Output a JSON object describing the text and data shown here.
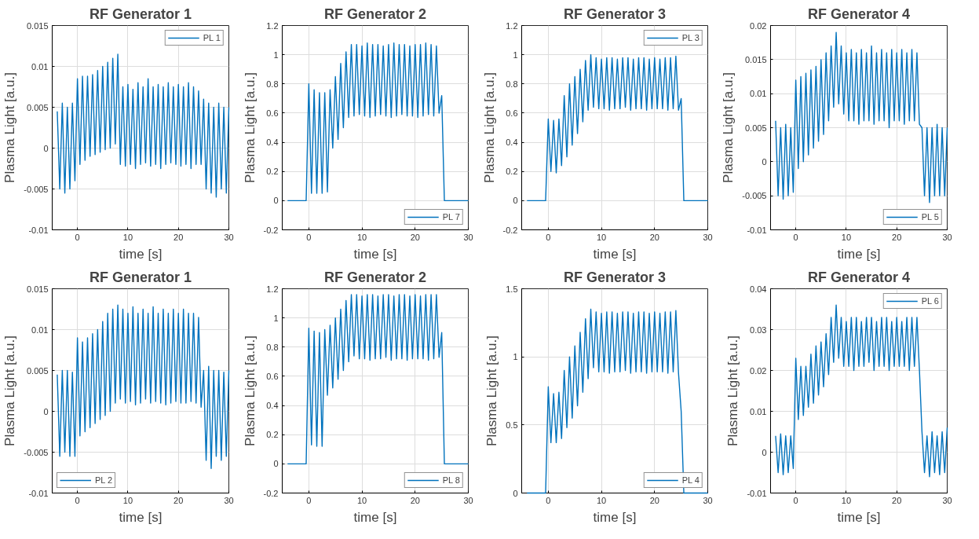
{
  "chart_data": [
    {
      "type": "line",
      "title": "RF Generator 1",
      "xlabel": "time [s]",
      "ylabel": "Plasma Light [a.u.]",
      "xlim": [
        -5,
        30
      ],
      "xticks": [
        0,
        10,
        20,
        30
      ],
      "ylim": [
        -0.01,
        0.015
      ],
      "yticks": [
        -0.01,
        -0.005,
        0,
        0.005,
        0.01,
        0.015
      ],
      "grid": true,
      "legend": "top right",
      "x": [
        -4,
        -3.5,
        -3,
        -2.5,
        -2,
        -1.5,
        -1,
        -0.5,
        0,
        0.5,
        1,
        1.5,
        2,
        2.5,
        3,
        3.5,
        4,
        4.5,
        5,
        5.5,
        6,
        6.5,
        7,
        7.5,
        8,
        8.5,
        9,
        9.5,
        10,
        10.5,
        11,
        11.5,
        12,
        12.5,
        13,
        13.5,
        14,
        14.5,
        15,
        15.5,
        16,
        16.5,
        17,
        17.5,
        18,
        18.5,
        19,
        19.5,
        20,
        20.5,
        21,
        21.5,
        22,
        22.5,
        23,
        23.5,
        24,
        24.5,
        25,
        25.5,
        26,
        26.5,
        27,
        27.5,
        28,
        28.5,
        29,
        29.5,
        30
      ],
      "series": [
        {
          "name": "PL 1",
          "color": "#0072bd",
          "values": [
            0.0045,
            -0.005,
            0.0055,
            -0.0055,
            0.005,
            -0.005,
            0.0055,
            -0.004,
            0.0085,
            -0.002,
            0.0088,
            -0.0015,
            0.0088,
            -0.001,
            0.009,
            -0.0008,
            0.0095,
            -0.0005,
            0.01,
            -0.0002,
            0.0105,
            0,
            0.011,
            0.0005,
            0.0115,
            -0.002,
            0.0075,
            -0.0022,
            0.0078,
            -0.002,
            0.0072,
            -0.0025,
            0.008,
            -0.002,
            0.0075,
            -0.0018,
            0.0085,
            -0.0022,
            0.0075,
            -0.002,
            0.0078,
            -0.0025,
            0.0075,
            -0.002,
            0.008,
            -0.0018,
            0.0075,
            -0.002,
            0.0078,
            -0.0022,
            0.0075,
            -0.002,
            0.008,
            -0.0025,
            0.0075,
            -0.002,
            0.007,
            -0.002,
            0.006,
            -0.005,
            0.0055,
            -0.0055,
            0.005,
            -0.006,
            0.0055,
            -0.005,
            0.005,
            -0.0055,
            0.005
          ]
        }
      ]
    },
    {
      "type": "line",
      "title": "RF Generator 2",
      "xlabel": "time [s]",
      "ylabel": "Plasma Light [a.u.]",
      "xlim": [
        -5,
        30
      ],
      "xticks": [
        0,
        10,
        20,
        30
      ],
      "ylim": [
        -0.2,
        1.2
      ],
      "yticks": [
        -0.2,
        0,
        0.2,
        0.4,
        0.6,
        0.8,
        1,
        1.2
      ],
      "grid": true,
      "legend": "bottom right",
      "x": [
        -4,
        -3.5,
        -3,
        -2.5,
        -2,
        -1.5,
        -1,
        -0.5,
        0,
        0.5,
        1,
        1.5,
        2,
        2.5,
        3,
        3.5,
        4,
        4.5,
        5,
        5.5,
        6,
        6.5,
        7,
        7.5,
        8,
        8.5,
        9,
        9.5,
        10,
        10.5,
        11,
        11.5,
        12,
        12.5,
        13,
        13.5,
        14,
        14.5,
        15,
        15.5,
        16,
        16.5,
        17,
        17.5,
        18,
        18.5,
        19,
        19.5,
        20,
        20.5,
        21,
        21.5,
        22,
        22.5,
        23,
        23.5,
        24,
        24.5,
        25,
        25.5,
        26,
        26.5,
        27,
        27.5,
        28,
        28.5,
        29,
        29.5,
        30
      ],
      "series": [
        {
          "name": "PL 7",
          "color": "#0072bd",
          "values": [
            0,
            0,
            0,
            0,
            0,
            0,
            0,
            0,
            0.8,
            0.05,
            0.76,
            0.05,
            0.74,
            0.05,
            0.74,
            0.06,
            0.76,
            0.36,
            0.85,
            0.42,
            0.94,
            0.5,
            1.02,
            0.57,
            1.07,
            0.58,
            1.07,
            0.59,
            1.06,
            0.58,
            1.08,
            0.57,
            1.07,
            0.58,
            1.07,
            0.59,
            1.06,
            0.58,
            1.07,
            0.57,
            1.08,
            0.58,
            1.07,
            0.59,
            1.07,
            0.58,
            1.06,
            0.58,
            1.07,
            0.57,
            1.07,
            0.58,
            1.08,
            0.59,
            1.07,
            0.58,
            1.06,
            0.6,
            0.72,
            0,
            0,
            0,
            0,
            0,
            0,
            0,
            0,
            0,
            0
          ]
        }
      ]
    },
    {
      "type": "line",
      "title": "RF Generator 3",
      "xlabel": "time [s]",
      "ylabel": "Plasma Light [a.u.]",
      "xlim": [
        -5,
        30
      ],
      "xticks": [
        0,
        10,
        20,
        30
      ],
      "ylim": [
        -0.2,
        1.2
      ],
      "yticks": [
        -0.2,
        0,
        0.2,
        0.4,
        0.6,
        0.8,
        1,
        1.2
      ],
      "grid": true,
      "legend": "top right",
      "x": [
        -4,
        -3.5,
        -3,
        -2.5,
        -2,
        -1.5,
        -1,
        -0.5,
        0,
        0.5,
        1,
        1.5,
        2,
        2.5,
        3,
        3.5,
        4,
        4.5,
        5,
        5.5,
        6,
        6.5,
        7,
        7.5,
        8,
        8.5,
        9,
        9.5,
        10,
        10.5,
        11,
        11.5,
        12,
        12.5,
        13,
        13.5,
        14,
        14.5,
        15,
        15.5,
        16,
        16.5,
        17,
        17.5,
        18,
        18.5,
        19,
        19.5,
        20,
        20.5,
        21,
        21.5,
        22,
        22.5,
        23,
        23.5,
        24,
        24.5,
        25,
        25.5,
        26,
        26.5,
        27,
        27.5,
        28,
        28.5,
        29,
        29.5,
        30
      ],
      "series": [
        {
          "name": "PL 3",
          "color": "#0072bd",
          "values": [
            0,
            0,
            0,
            0,
            0,
            0,
            0,
            0,
            0.56,
            0.2,
            0.55,
            0.19,
            0.56,
            0.24,
            0.72,
            0.3,
            0.8,
            0.38,
            0.85,
            0.46,
            0.9,
            0.54,
            0.96,
            0.62,
            1.0,
            0.64,
            0.98,
            0.63,
            0.97,
            0.63,
            0.98,
            0.62,
            0.98,
            0.63,
            0.97,
            0.63,
            0.98,
            0.64,
            0.98,
            0.62,
            0.97,
            0.63,
            0.98,
            0.63,
            0.98,
            0.62,
            0.97,
            0.63,
            0.98,
            0.63,
            0.97,
            0.63,
            0.98,
            0.62,
            0.98,
            0.63,
            0.99,
            0.62,
            0.7,
            0,
            0,
            0,
            0,
            0,
            0,
            0,
            0,
            0,
            0
          ]
        }
      ]
    },
    {
      "type": "line",
      "title": "RF Generator 4",
      "xlabel": "time [s]",
      "ylabel": "Plasma Light [a.u.]",
      "xlim": [
        -5,
        30
      ],
      "xticks": [
        0,
        10,
        20,
        30
      ],
      "ylim": [
        -0.01,
        0.02
      ],
      "yticks": [
        -0.01,
        -0.005,
        0,
        0.005,
        0.01,
        0.015,
        0.02
      ],
      "grid": true,
      "legend": "bottom right",
      "x": [
        -4,
        -3.5,
        -3,
        -2.5,
        -2,
        -1.5,
        -1,
        -0.5,
        0,
        0.5,
        1,
        1.5,
        2,
        2.5,
        3,
        3.5,
        4,
        4.5,
        5,
        5.5,
        6,
        6.5,
        7,
        7.5,
        8,
        8.5,
        9,
        9.5,
        10,
        10.5,
        11,
        11.5,
        12,
        12.5,
        13,
        13.5,
        14,
        14.5,
        15,
        15.5,
        16,
        16.5,
        17,
        17.5,
        18,
        18.5,
        19,
        19.5,
        20,
        20.5,
        21,
        21.5,
        22,
        22.5,
        23,
        23.5,
        24,
        24.5,
        25,
        25.5,
        26,
        26.5,
        27,
        27.5,
        28,
        28.5,
        29,
        29.5,
        30
      ],
      "series": [
        {
          "name": "PL 5",
          "color": "#0072bd",
          "values": [
            0.006,
            -0.005,
            0.005,
            -0.0055,
            0.0055,
            -0.005,
            0.005,
            -0.0045,
            0.012,
            -0.001,
            0.0125,
            0,
            0.013,
            0.001,
            0.0135,
            0.002,
            0.014,
            0.003,
            0.015,
            0.004,
            0.016,
            0.006,
            0.017,
            0.008,
            0.019,
            0.0085,
            0.017,
            0.007,
            0.016,
            0.006,
            0.0165,
            0.006,
            0.016,
            0.0055,
            0.0165,
            0.006,
            0.016,
            0.006,
            0.017,
            0.0055,
            0.016,
            0.006,
            0.0165,
            0.006,
            0.016,
            0.005,
            0.0165,
            0.006,
            0.016,
            0.006,
            0.0165,
            0.0055,
            0.016,
            0.006,
            0.0165,
            0.006,
            0.016,
            0.0055,
            0.005,
            -0.005,
            0.005,
            -0.006,
            0.005,
            -0.005,
            0.0055,
            -0.005,
            0.005,
            -0.005,
            0.005
          ]
        }
      ]
    },
    {
      "type": "line",
      "title": "RF Generator 1",
      "xlabel": "time [s]",
      "ylabel": "Plasma Light [a.u.]",
      "xlim": [
        -5,
        30
      ],
      "xticks": [
        0,
        10,
        20,
        30
      ],
      "ylim": [
        -0.01,
        0.015
      ],
      "yticks": [
        -0.01,
        -0.005,
        0,
        0.005,
        0.01,
        0.015
      ],
      "grid": true,
      "legend": "bottom left",
      "x": [
        -4,
        -3.5,
        -3,
        -2.5,
        -2,
        -1.5,
        -1,
        -0.5,
        0,
        0.5,
        1,
        1.5,
        2,
        2.5,
        3,
        3.5,
        4,
        4.5,
        5,
        5.5,
        6,
        6.5,
        7,
        7.5,
        8,
        8.5,
        9,
        9.5,
        10,
        10.5,
        11,
        11.5,
        12,
        12.5,
        13,
        13.5,
        14,
        14.5,
        15,
        15.5,
        16,
        16.5,
        17,
        17.5,
        18,
        18.5,
        19,
        19.5,
        20,
        20.5,
        21,
        21.5,
        22,
        22.5,
        23,
        23.5,
        24,
        24.5,
        25,
        25.5,
        26,
        26.5,
        27,
        27.5,
        28,
        28.5,
        29,
        29.5,
        30
      ],
      "series": [
        {
          "name": "PL 2",
          "color": "#0072bd",
          "values": [
            0.0045,
            -0.0055,
            0.005,
            -0.005,
            0.005,
            -0.0055,
            0.0048,
            -0.0055,
            0.009,
            -0.003,
            0.0085,
            -0.0025,
            0.009,
            -0.002,
            0.0095,
            -0.0015,
            0.01,
            -0.001,
            0.011,
            -0.0005,
            0.012,
            0,
            0.0125,
            0.001,
            0.013,
            0.0015,
            0.0125,
            0.001,
            0.012,
            0.0012,
            0.0128,
            0.0008,
            0.012,
            0.001,
            0.0125,
            0.0015,
            0.012,
            0.001,
            0.0128,
            0.0012,
            0.012,
            0.001,
            0.0125,
            0.0008,
            0.012,
            0.001,
            0.0125,
            0.0012,
            0.012,
            0.001,
            0.0125,
            0.001,
            0.012,
            0.0012,
            0.012,
            0.001,
            0.0115,
            0.0005,
            0.005,
            -0.006,
            0.0055,
            -0.007,
            0.005,
            -0.0055,
            0.005,
            -0.006,
            0.0048,
            -0.0055,
            0.005
          ]
        }
      ]
    },
    {
      "type": "line",
      "title": "RF Generator 2",
      "xlabel": "time [s]",
      "ylabel": "Plasma Light [a.u.]",
      "xlim": [
        -5,
        30
      ],
      "xticks": [
        0,
        10,
        20,
        30
      ],
      "ylim": [
        -0.2,
        1.2
      ],
      "yticks": [
        -0.2,
        0,
        0.2,
        0.4,
        0.6,
        0.8,
        1,
        1.2
      ],
      "grid": true,
      "legend": "bottom right",
      "x": [
        -4,
        -3.5,
        -3,
        -2.5,
        -2,
        -1.5,
        -1,
        -0.5,
        0,
        0.5,
        1,
        1.5,
        2,
        2.5,
        3,
        3.5,
        4,
        4.5,
        5,
        5.5,
        6,
        6.5,
        7,
        7.5,
        8,
        8.5,
        9,
        9.5,
        10,
        10.5,
        11,
        11.5,
        12,
        12.5,
        13,
        13.5,
        14,
        14.5,
        15,
        15.5,
        16,
        16.5,
        17,
        17.5,
        18,
        18.5,
        19,
        19.5,
        20,
        20.5,
        21,
        21.5,
        22,
        22.5,
        23,
        23.5,
        24,
        24.5,
        25,
        25.5,
        26,
        26.5,
        27,
        27.5,
        28,
        28.5,
        29,
        29.5,
        30
      ],
      "series": [
        {
          "name": "PL 8",
          "color": "#0072bd",
          "values": [
            0,
            0,
            0,
            0,
            0,
            0,
            0,
            0,
            0.93,
            0.13,
            0.91,
            0.12,
            0.9,
            0.12,
            0.92,
            0.47,
            0.95,
            0.52,
            1.0,
            0.58,
            1.06,
            0.64,
            1.12,
            0.7,
            1.16,
            0.74,
            1.16,
            0.72,
            1.15,
            0.72,
            1.16,
            0.71,
            1.16,
            0.72,
            1.15,
            0.72,
            1.16,
            0.73,
            1.16,
            0.71,
            1.15,
            0.72,
            1.16,
            0.72,
            1.16,
            0.71,
            1.15,
            0.72,
            1.16,
            0.72,
            1.15,
            0.72,
            1.16,
            0.71,
            1.16,
            0.72,
            1.16,
            0.73,
            0.9,
            0,
            0,
            0,
            0,
            0,
            0,
            0,
            0,
            0,
            0
          ]
        }
      ]
    },
    {
      "type": "line",
      "title": "RF Generator 3",
      "xlabel": "time [s]",
      "ylabel": "Plasma Light [a.u.]",
      "xlim": [
        -5,
        30
      ],
      "xticks": [
        0,
        10,
        20,
        30
      ],
      "ylim": [
        0,
        1.5
      ],
      "yticks": [
        0,
        0.5,
        1,
        1.5
      ],
      "grid": true,
      "legend": "bottom right",
      "x": [
        -4,
        -3.5,
        -3,
        -2.5,
        -2,
        -1.5,
        -1,
        -0.5,
        0,
        0.5,
        1,
        1.5,
        2,
        2.5,
        3,
        3.5,
        4,
        4.5,
        5,
        5.5,
        6,
        6.5,
        7,
        7.5,
        8,
        8.5,
        9,
        9.5,
        10,
        10.5,
        11,
        11.5,
        12,
        12.5,
        13,
        13.5,
        14,
        14.5,
        15,
        15.5,
        16,
        16.5,
        17,
        17.5,
        18,
        18.5,
        19,
        19.5,
        20,
        20.5,
        21,
        21.5,
        22,
        22.5,
        23,
        23.5,
        24,
        24.5,
        25,
        25.5,
        26,
        26.5,
        27,
        27.5,
        28,
        28.5,
        29,
        29.5,
        30
      ],
      "series": [
        {
          "name": "PL 4",
          "color": "#0072bd",
          "values": [
            0,
            0,
            0,
            0,
            0,
            0,
            0,
            0,
            0.78,
            0.37,
            0.73,
            0.37,
            0.74,
            0.4,
            0.9,
            0.48,
            1.0,
            0.55,
            1.08,
            0.64,
            1.18,
            0.74,
            1.28,
            0.84,
            1.35,
            0.92,
            1.33,
            0.89,
            1.32,
            0.89,
            1.33,
            0.88,
            1.33,
            0.89,
            1.32,
            0.89,
            1.33,
            0.9,
            1.33,
            0.88,
            1.32,
            0.89,
            1.33,
            0.89,
            1.33,
            0.88,
            1.32,
            0.89,
            1.33,
            0.89,
            1.32,
            0.89,
            1.33,
            0.88,
            1.33,
            0.89,
            1.34,
            0.88,
            0.6,
            0,
            0,
            0,
            0,
            0,
            0,
            0,
            0,
            0,
            0
          ]
        }
      ]
    },
    {
      "type": "line",
      "title": "RF Generator 4",
      "xlabel": "time [s]",
      "ylabel": "Plasma Light [a.u.]",
      "xlim": [
        -5,
        30
      ],
      "xticks": [
        0,
        10,
        20,
        30
      ],
      "ylim": [
        -0.01,
        0.04
      ],
      "yticks": [
        -0.01,
        0,
        0.01,
        0.02,
        0.03,
        0.04
      ],
      "grid": true,
      "legend": "top right",
      "x": [
        -4,
        -3.5,
        -3,
        -2.5,
        -2,
        -1.5,
        -1,
        -0.5,
        0,
        0.5,
        1,
        1.5,
        2,
        2.5,
        3,
        3.5,
        4,
        4.5,
        5,
        5.5,
        6,
        6.5,
        7,
        7.5,
        8,
        8.5,
        9,
        9.5,
        10,
        10.5,
        11,
        11.5,
        12,
        12.5,
        13,
        13.5,
        14,
        14.5,
        15,
        15.5,
        16,
        16.5,
        17,
        17.5,
        18,
        18.5,
        19,
        19.5,
        20,
        20.5,
        21,
        21.5,
        22,
        22.5,
        23,
        23.5,
        24,
        24.5,
        25,
        25.5,
        26,
        26.5,
        27,
        27.5,
        28,
        28.5,
        29,
        29.5,
        30
      ],
      "series": [
        {
          "name": "PL 6",
          "color": "#0072bd",
          "values": [
            0.004,
            -0.005,
            0.0045,
            -0.0055,
            0.004,
            -0.005,
            0.004,
            -0.004,
            0.023,
            0.008,
            0.021,
            0.009,
            0.021,
            0.011,
            0.024,
            0.012,
            0.026,
            0.014,
            0.027,
            0.016,
            0.029,
            0.019,
            0.033,
            0.022,
            0.036,
            0.023,
            0.033,
            0.021,
            0.032,
            0.021,
            0.033,
            0.02,
            0.033,
            0.021,
            0.032,
            0.021,
            0.033,
            0.022,
            0.033,
            0.02,
            0.032,
            0.021,
            0.033,
            0.021,
            0.033,
            0.02,
            0.032,
            0.021,
            0.033,
            0.021,
            0.032,
            0.021,
            0.033,
            0.02,
            0.033,
            0.021,
            0.033,
            0.02,
            0.005,
            -0.005,
            0.004,
            -0.006,
            0.005,
            -0.005,
            0.004,
            -0.0055,
            0.005,
            -0.005,
            0.006
          ]
        }
      ]
    }
  ]
}
